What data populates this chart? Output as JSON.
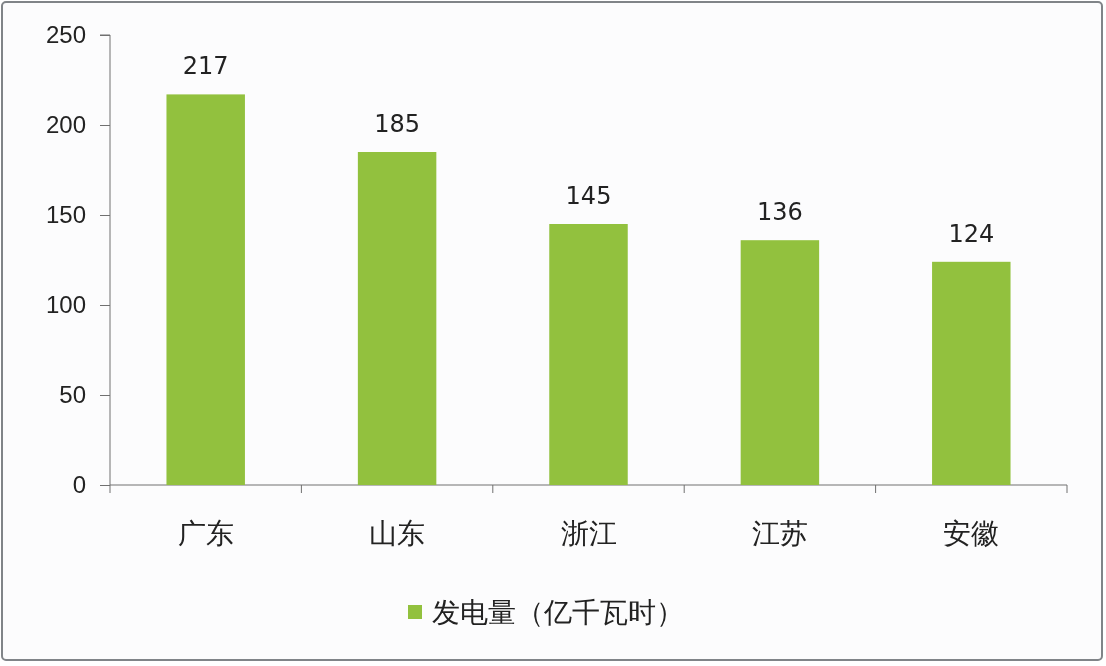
{
  "chart_data": {
    "type": "bar",
    "categories": [
      "广东",
      "山东",
      "浙江",
      "江苏",
      "安徽"
    ],
    "series": [
      {
        "name": "发电量（亿千瓦时）",
        "color": "#92c13e",
        "values": [
          217,
          185,
          145,
          136,
          124
        ]
      }
    ],
    "ylim": [
      0,
      250
    ],
    "yticks": [
      0,
      50,
      100,
      150,
      200,
      250
    ],
    "data_labels": true,
    "legend": "bottom",
    "grid": false
  }
}
